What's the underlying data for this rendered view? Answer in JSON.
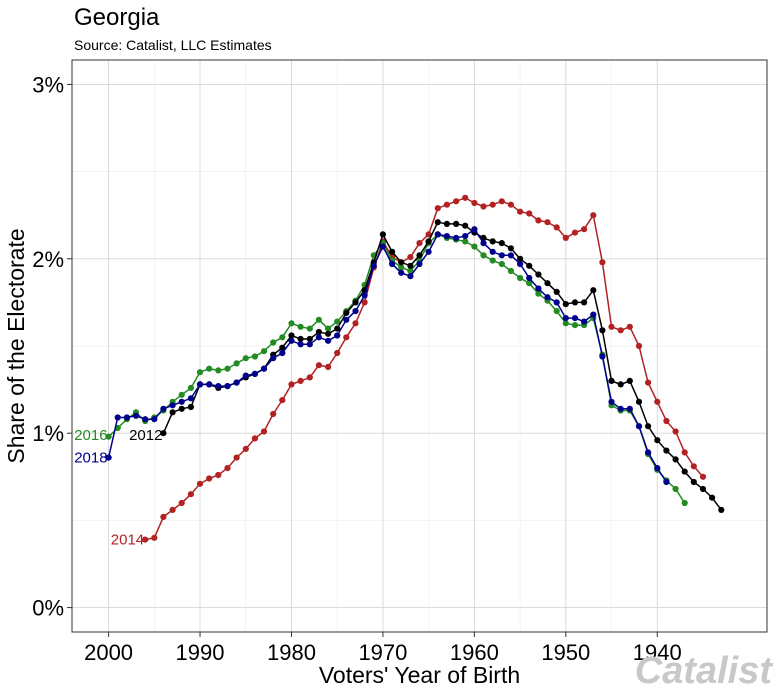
{
  "header": {
    "title": "Georgia",
    "subtitle": "Source: Catalist, LLC Estimates"
  },
  "watermark": "Catalist",
  "chart_data": {
    "type": "line",
    "xlabel": "Voters' Year of Birth",
    "ylabel": "Share of the Electorate",
    "x_reversed": true,
    "xlim": [
      2004,
      1928
    ],
    "ylim": [
      -0.14,
      3.14
    ],
    "x_ticks": [
      2000,
      1990,
      1980,
      1970,
      1960,
      1950,
      1940
    ],
    "x_tick_labels": [
      "2000",
      "1990",
      "1980",
      "1970",
      "1960",
      "1950",
      "1940"
    ],
    "y_ticks": [
      0,
      1,
      2,
      3
    ],
    "y_tick_labels": [
      "0%",
      "1%",
      "2%",
      "3%"
    ],
    "grid": true,
    "series": [
      {
        "name": "2014",
        "color": "#b22222",
        "x": [
          1996,
          1995,
          1994,
          1993,
          1992,
          1991,
          1990,
          1989,
          1988,
          1987,
          1986,
          1985,
          1984,
          1983,
          1982,
          1981,
          1980,
          1979,
          1978,
          1977,
          1976,
          1975,
          1974,
          1973,
          1972,
          1971,
          1970,
          1969,
          1968,
          1967,
          1966,
          1965,
          1964,
          1963,
          1962,
          1961,
          1960,
          1959,
          1958,
          1957,
          1956,
          1955,
          1954,
          1953,
          1952,
          1951,
          1950,
          1949,
          1948,
          1947,
          1946,
          1945,
          1944,
          1943,
          1942,
          1941,
          1940,
          1939,
          1938,
          1937,
          1936,
          1935
        ],
        "values": [
          0.39,
          0.4,
          0.52,
          0.56,
          0.6,
          0.65,
          0.71,
          0.74,
          0.76,
          0.8,
          0.86,
          0.91,
          0.97,
          1.01,
          1.11,
          1.19,
          1.28,
          1.3,
          1.32,
          1.39,
          1.38,
          1.46,
          1.55,
          1.63,
          1.75,
          1.95,
          2.1,
          2.01,
          1.98,
          2.01,
          2.09,
          2.14,
          2.29,
          2.31,
          2.33,
          2.35,
          2.32,
          2.3,
          2.31,
          2.33,
          2.31,
          2.27,
          2.26,
          2.22,
          2.21,
          2.18,
          2.12,
          2.15,
          2.17,
          2.25,
          1.98,
          1.61,
          1.59,
          1.61,
          1.5,
          1.29,
          1.18,
          1.07,
          1.01,
          0.89,
          0.81,
          0.75
        ]
      },
      {
        "name": "2016",
        "color": "#228b22",
        "x": [
          2000,
          1999,
          1998,
          1997,
          1996,
          1995,
          1994,
          1993,
          1992,
          1991,
          1990,
          1989,
          1988,
          1987,
          1986,
          1985,
          1984,
          1983,
          1982,
          1981,
          1980,
          1979,
          1978,
          1977,
          1976,
          1975,
          1974,
          1973,
          1972,
          1971,
          1970,
          1969,
          1968,
          1967,
          1966,
          1965,
          1964,
          1963,
          1962,
          1961,
          1960,
          1959,
          1958,
          1957,
          1956,
          1955,
          1954,
          1953,
          1952,
          1951,
          1950,
          1949,
          1948,
          1947,
          1946,
          1945,
          1944,
          1943,
          1942,
          1941,
          1940,
          1939,
          1938,
          1937
        ],
        "values": [
          0.98,
          1.03,
          1.08,
          1.12,
          1.07,
          1.09,
          1.13,
          1.18,
          1.22,
          1.26,
          1.35,
          1.37,
          1.36,
          1.37,
          1.4,
          1.43,
          1.44,
          1.47,
          1.52,
          1.55,
          1.63,
          1.61,
          1.6,
          1.65,
          1.6,
          1.64,
          1.7,
          1.76,
          1.85,
          2.02,
          2.09,
          1.99,
          1.95,
          1.93,
          1.99,
          2.09,
          2.14,
          2.12,
          2.11,
          2.1,
          2.07,
          2.02,
          1.99,
          1.97,
          1.93,
          1.89,
          1.86,
          1.8,
          1.76,
          1.7,
          1.63,
          1.62,
          1.62,
          1.66,
          1.45,
          1.16,
          1.13,
          1.13,
          1.04,
          0.88,
          0.79,
          0.73,
          0.68,
          0.6
        ]
      },
      {
        "name": "2012",
        "color": "#000000",
        "x": [
          1994,
          1993,
          1992,
          1991,
          1990,
          1989,
          1988,
          1987,
          1986,
          1985,
          1984,
          1983,
          1982,
          1981,
          1980,
          1979,
          1978,
          1977,
          1976,
          1975,
          1974,
          1973,
          1972,
          1971,
          1970,
          1969,
          1968,
          1967,
          1966,
          1965,
          1964,
          1963,
          1962,
          1961,
          1960,
          1959,
          1958,
          1957,
          1956,
          1955,
          1954,
          1953,
          1952,
          1951,
          1950,
          1949,
          1948,
          1947,
          1946,
          1945,
          1944,
          1943,
          1942,
          1941,
          1940,
          1939,
          1938,
          1937,
          1936,
          1935,
          1934,
          1933
        ],
        "values": [
          1.0,
          1.12,
          1.14,
          1.15,
          1.28,
          1.28,
          1.26,
          1.27,
          1.29,
          1.32,
          1.34,
          1.37,
          1.45,
          1.49,
          1.56,
          1.54,
          1.54,
          1.58,
          1.57,
          1.6,
          1.69,
          1.75,
          1.82,
          1.98,
          2.14,
          2.04,
          1.98,
          1.96,
          2.02,
          2.1,
          2.21,
          2.2,
          2.2,
          2.19,
          2.15,
          2.12,
          2.1,
          2.09,
          2.06,
          2.0,
          1.96,
          1.91,
          1.86,
          1.81,
          1.74,
          1.75,
          1.75,
          1.82,
          1.59,
          1.3,
          1.28,
          1.3,
          1.18,
          1.04,
          0.96,
          0.9,
          0.85,
          0.78,
          0.72,
          0.68,
          0.63,
          0.56
        ]
      },
      {
        "name": "2018",
        "color": "#00008b",
        "x": [
          2000,
          1999,
          1998,
          1997,
          1996,
          1995,
          1994,
          1993,
          1992,
          1991,
          1990,
          1989,
          1988,
          1987,
          1986,
          1985,
          1984,
          1983,
          1982,
          1981,
          1980,
          1979,
          1978,
          1977,
          1976,
          1975,
          1974,
          1973,
          1972,
          1971,
          1970,
          1969,
          1968,
          1967,
          1966,
          1965,
          1964,
          1963,
          1962,
          1961,
          1960,
          1959,
          1958,
          1957,
          1956,
          1955,
          1954,
          1953,
          1952,
          1951,
          1950,
          1949,
          1948,
          1947,
          1946,
          1945,
          1944,
          1943,
          1942,
          1941,
          1940,
          1939
        ],
        "values": [
          0.86,
          1.09,
          1.09,
          1.1,
          1.08,
          1.08,
          1.14,
          1.16,
          1.18,
          1.2,
          1.28,
          1.28,
          1.27,
          1.27,
          1.29,
          1.33,
          1.34,
          1.37,
          1.43,
          1.46,
          1.53,
          1.51,
          1.51,
          1.55,
          1.53,
          1.56,
          1.65,
          1.7,
          1.79,
          1.96,
          2.07,
          1.97,
          1.92,
          1.9,
          1.97,
          2.04,
          2.14,
          2.13,
          2.12,
          2.13,
          2.17,
          2.09,
          2.04,
          2.02,
          2.02,
          1.97,
          1.89,
          1.83,
          1.78,
          1.75,
          1.66,
          1.66,
          1.64,
          1.68,
          1.44,
          1.18,
          1.14,
          1.14,
          1.04,
          0.89,
          0.8,
          0.72
        ]
      }
    ],
    "series_labels": [
      {
        "text": "2018",
        "color": "#00008b",
        "x": 2000,
        "y": 0.86
      },
      {
        "text": "2016",
        "color": "#228b22",
        "x": 2000,
        "y": 0.99
      },
      {
        "text": "2012",
        "color": "#000000",
        "x": 1994,
        "y": 0.99
      },
      {
        "text": "2014",
        "color": "#b22222",
        "x": 1996,
        "y": 0.39
      }
    ]
  }
}
